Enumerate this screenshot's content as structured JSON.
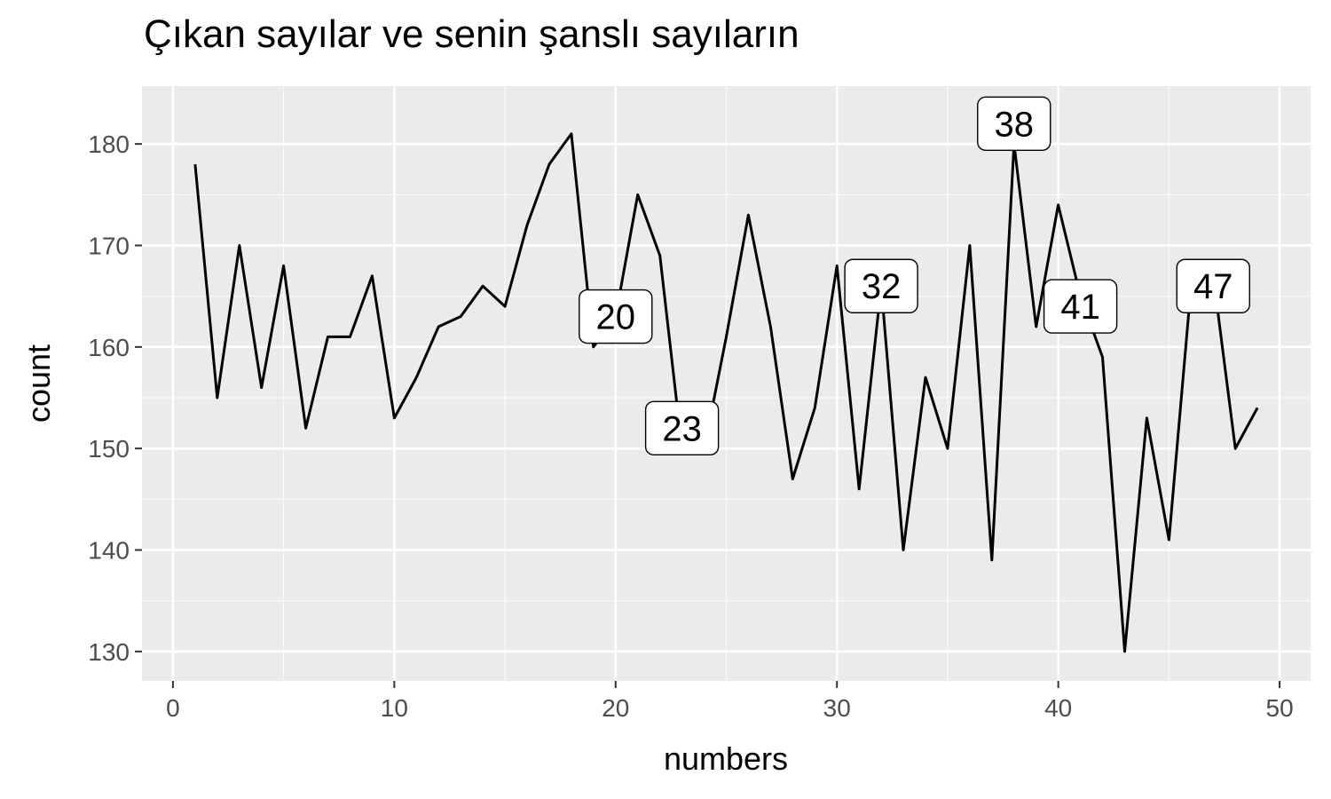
{
  "chart_data": {
    "type": "line",
    "title": "Çıkan sayılar ve senin şanslı sayıların",
    "xlabel": "numbers",
    "ylabel": "count",
    "xlim": [
      -1.4,
      51.4
    ],
    "ylim": [
      127.1,
      185.7
    ],
    "x_ticks": [
      0,
      10,
      20,
      30,
      40,
      50
    ],
    "y_ticks": [
      130,
      140,
      150,
      160,
      170,
      180
    ],
    "x_minor": [
      5,
      15,
      25,
      35,
      45
    ],
    "y_minor": [
      135,
      145,
      155,
      165,
      175
    ],
    "grid": true,
    "background": "#ebebeb",
    "grid_color": "#ffffff",
    "line_color": "#000000",
    "series": [
      {
        "x": [
          1,
          2,
          3,
          4,
          5,
          6,
          7,
          8,
          9,
          10,
          11,
          12,
          13,
          14,
          15,
          16,
          17,
          18,
          19,
          20,
          21,
          22,
          23,
          24,
          25,
          26,
          27,
          28,
          29,
          30,
          31,
          32,
          33,
          34,
          35,
          36,
          37,
          38,
          39,
          40,
          41,
          42,
          43,
          44,
          45,
          46,
          47,
          48,
          49
        ],
        "y": [
          178,
          155,
          170,
          156,
          168,
          152,
          161,
          161,
          167,
          153,
          157,
          162,
          163,
          166,
          164,
          172,
          178,
          181,
          160,
          163,
          175,
          169,
          150,
          150,
          161,
          173,
          162,
          147,
          154,
          168,
          146,
          166,
          140,
          157,
          150,
          170,
          139,
          180,
          162,
          174,
          165,
          159,
          130,
          153,
          141,
          166,
          167,
          150,
          154
        ]
      }
    ],
    "annotations": [
      {
        "x": 20,
        "y": 163,
        "label": "20"
      },
      {
        "x": 23,
        "y": 152,
        "label": "23"
      },
      {
        "x": 32,
        "y": 166,
        "label": "32"
      },
      {
        "x": 38,
        "y": 182,
        "label": "38"
      },
      {
        "x": 41,
        "y": 164,
        "label": "41"
      },
      {
        "x": 47,
        "y": 166,
        "label": "47"
      }
    ]
  }
}
